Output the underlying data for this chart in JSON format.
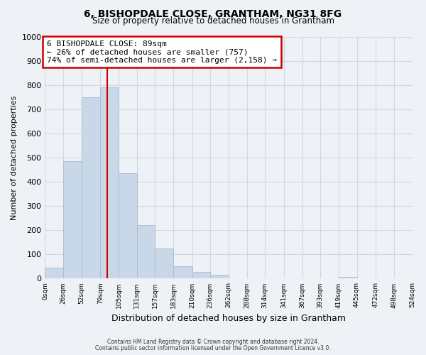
{
  "title": "6, BISHOPDALE CLOSE, GRANTHAM, NG31 8FG",
  "subtitle": "Size of property relative to detached houses in Grantham",
  "xlabel": "Distribution of detached houses by size in Grantham",
  "ylabel": "Number of detached properties",
  "bar_color": "#c8d8e8",
  "bar_edge_color": "#a8bcd0",
  "grid_color": "#ccd8e4",
  "vline_x": 89,
  "vline_color": "#cc0000",
  "bin_edges": [
    0,
    26,
    52,
    79,
    105,
    131,
    157,
    183,
    210,
    236,
    262,
    288,
    314,
    341,
    367,
    393,
    419,
    445,
    472,
    498,
    524
  ],
  "bin_labels": [
    "0sqm",
    "26sqm",
    "52sqm",
    "79sqm",
    "105sqm",
    "131sqm",
    "157sqm",
    "183sqm",
    "210sqm",
    "236sqm",
    "262sqm",
    "288sqm",
    "314sqm",
    "341sqm",
    "367sqm",
    "393sqm",
    "419sqm",
    "445sqm",
    "472sqm",
    "498sqm",
    "524sqm"
  ],
  "bar_heights": [
    45,
    485,
    750,
    790,
    435,
    220,
    125,
    52,
    28,
    15,
    0,
    0,
    0,
    0,
    0,
    0,
    8,
    0,
    0,
    0
  ],
  "ylim": [
    0,
    1000
  ],
  "yticks": [
    0,
    100,
    200,
    300,
    400,
    500,
    600,
    700,
    800,
    900,
    1000
  ],
  "annotation_line1": "6 BISHOPDALE CLOSE: 89sqm",
  "annotation_line2": "← 26% of detached houses are smaller (757)",
  "annotation_line3": "74% of semi-detached houses are larger (2,158) →",
  "annotation_box_color": "#ffffff",
  "annotation_border_color": "#cc0000",
  "footer_line1": "Contains HM Land Registry data © Crown copyright and database right 2024.",
  "footer_line2": "Contains public sector information licensed under the Open Government Licence v3.0.",
  "background_color": "#eef2f7",
  "title_fontsize": 10,
  "subtitle_fontsize": 8.5
}
